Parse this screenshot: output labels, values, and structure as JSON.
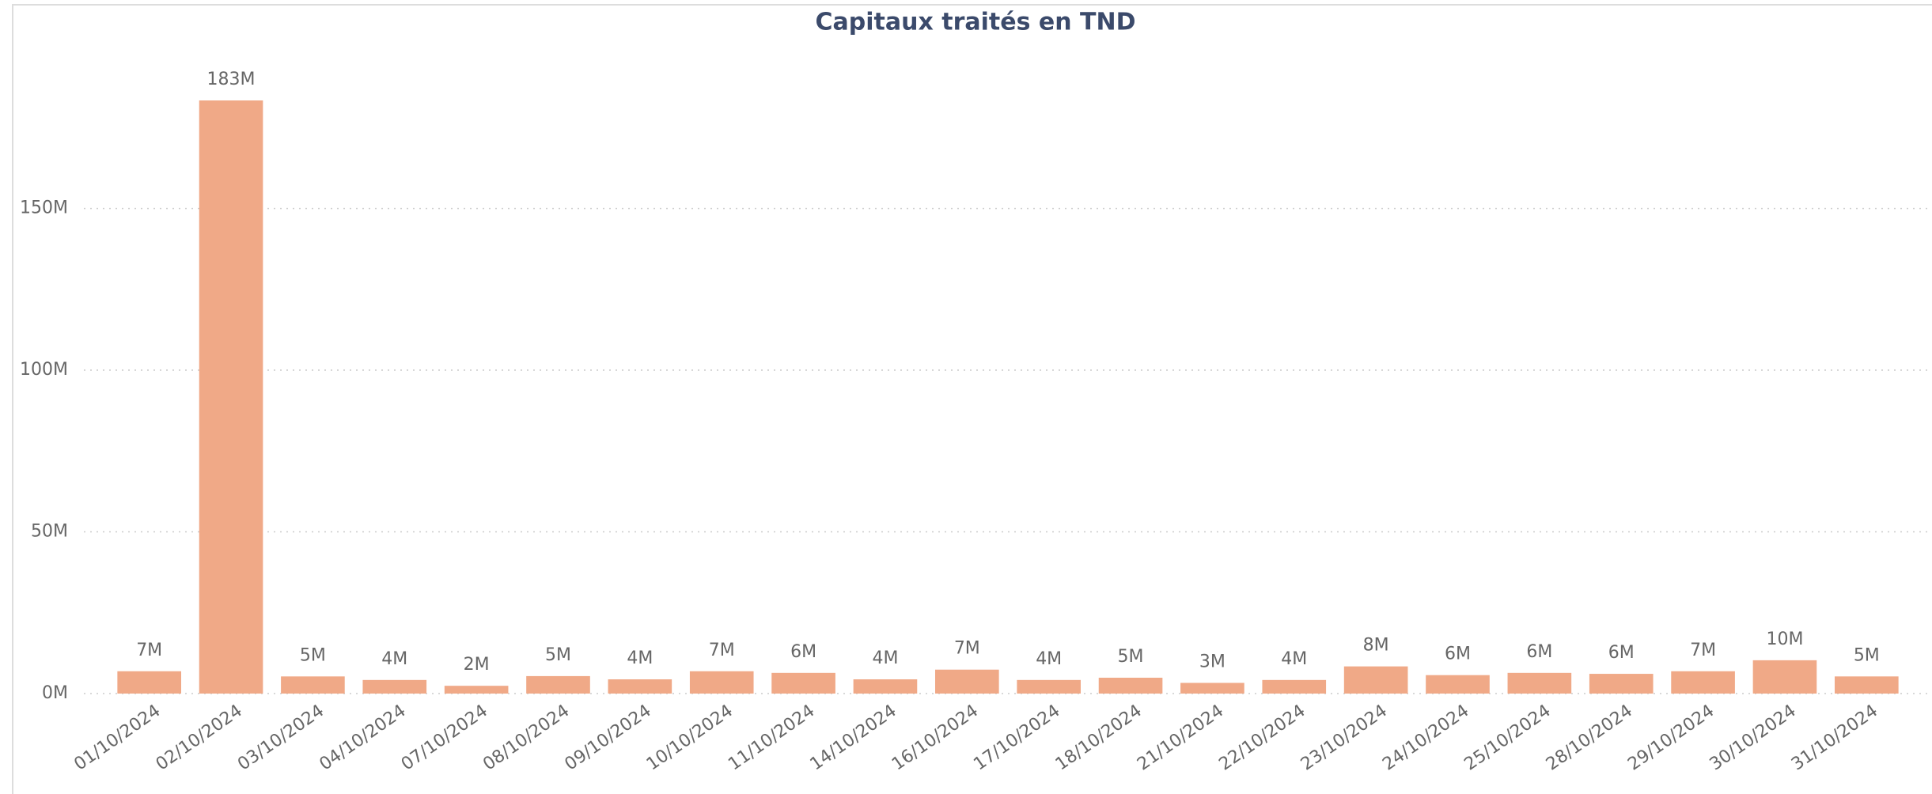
{
  "chart_data": {
    "type": "bar",
    "title": "Capitaux traités en TND",
    "categories": [
      "01/10/2024",
      "02/10/2024",
      "03/10/2024",
      "04/10/2024",
      "07/10/2024",
      "08/10/2024",
      "09/10/2024",
      "10/10/2024",
      "11/10/2024",
      "14/10/2024",
      "16/10/2024",
      "17/10/2024",
      "18/10/2024",
      "21/10/2024",
      "22/10/2024",
      "23/10/2024",
      "24/10/2024",
      "25/10/2024",
      "28/10/2024",
      "29/10/2024",
      "30/10/2024",
      "31/10/2024"
    ],
    "values": [
      6900000,
      183400000,
      5300000,
      4200000,
      2400000,
      5400000,
      4400000,
      6900000,
      6400000,
      4400000,
      7400000,
      4200000,
      4900000,
      3300000,
      4200000,
      8400000,
      5700000,
      6400000,
      6100000,
      6900000,
      10300000,
      5300000
    ],
    "value_labels": [
      "7M",
      "183M",
      "5M",
      "4M",
      "2M",
      "5M",
      "4M",
      "7M",
      "6M",
      "4M",
      "7M",
      "4M",
      "5M",
      "3M",
      "4M",
      "8M",
      "6M",
      "6M",
      "6M",
      "7M",
      "10M",
      "5M"
    ],
    "color": "#f0a987",
    "ylim": [
      0,
      190000000
    ],
    "yticks": [
      {
        "value": 0,
        "label": "0M"
      },
      {
        "value": 50000000,
        "label": "50M"
      },
      {
        "value": 100000000,
        "label": "100M"
      },
      {
        "value": 150000000,
        "label": "150M"
      }
    ],
    "grid": true
  }
}
